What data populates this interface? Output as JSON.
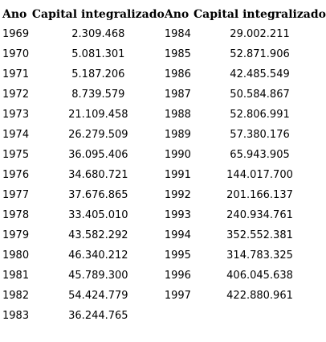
{
  "headers": {
    "year": "Ano",
    "capital": "Capital integralizado"
  },
  "rows": [
    {
      "year1": "1969",
      "value1": "2.309.468",
      "year2": "1984",
      "value2": "29.002.211"
    },
    {
      "year1": "1970",
      "value1": "5.081.301",
      "year2": "1985",
      "value2": "52.871.906"
    },
    {
      "year1": "1971",
      "value1": "5.187.206",
      "year2": "1986",
      "value2": "42.485.549"
    },
    {
      "year1": "1972",
      "value1": "8.739.579",
      "year2": "1987",
      "value2": "50.584.867"
    },
    {
      "year1": "1973",
      "value1": "21.109.458",
      "year2": "1988",
      "value2": "52.806.991"
    },
    {
      "year1": "1974",
      "value1": "26.279.509",
      "year2": "1989",
      "value2": "57.380.176"
    },
    {
      "year1": "1975",
      "value1": "36.095.406",
      "year2": "1990",
      "value2": "65.943.905"
    },
    {
      "year1": "1976",
      "value1": "34.680.721",
      "year2": "1991",
      "value2": "144.017.700"
    },
    {
      "year1": "1977",
      "value1": "37.676.865",
      "year2": "1992",
      "value2": "201.166.137"
    },
    {
      "year1": "1978",
      "value1": "33.405.010",
      "year2": "1993",
      "value2": "240.934.761"
    },
    {
      "year1": "1979",
      "value1": "43.582.292",
      "year2": "1994",
      "value2": "352.552.381"
    },
    {
      "year1": "1980",
      "value1": "46.340.212",
      "year2": "1995",
      "value2": "314.783.325"
    },
    {
      "year1": "1981",
      "value1": "45.789.300",
      "year2": "1996",
      "value2": "406.045.638"
    },
    {
      "year1": "1982",
      "value1": "54.424.779",
      "year2": "1997",
      "value2": "422.880.961"
    },
    {
      "year1": "1983",
      "value1": "36.244.765",
      "year2": "",
      "value2": ""
    }
  ]
}
